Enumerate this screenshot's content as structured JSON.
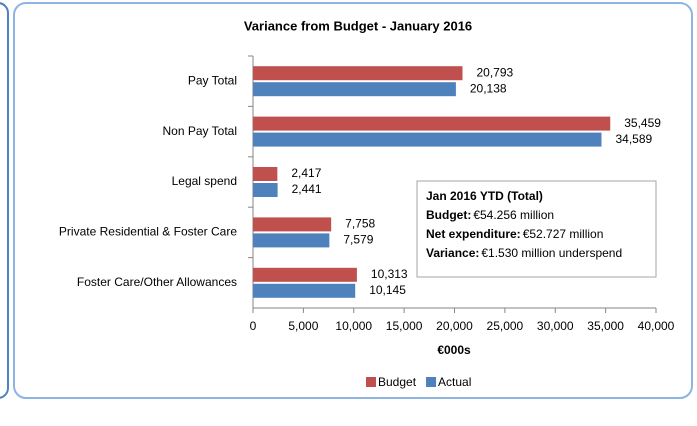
{
  "chart_data": {
    "type": "hbar",
    "title": "Variance from Budget - January 2016",
    "x_label": "€000s",
    "categories": [
      "Pay  Total",
      "Non Pay Total",
      "Legal spend",
      "Private Residential & Foster Care",
      "Foster Care/Other Allowances"
    ],
    "series": [
      {
        "name": "Budget",
        "color": "#c0504d",
        "values": [
          20793,
          35459,
          2417,
          7758,
          10313
        ],
        "value_labels": [
          "20,793",
          "35,459",
          "2,417",
          "7,758",
          "10,313"
        ]
      },
      {
        "name": "Actual",
        "color": "#4f81bd",
        "values": [
          20138,
          34589,
          2441,
          7579,
          10145
        ],
        "value_labels": [
          "20,138",
          "34,589",
          "2,441",
          "7,579",
          "10,145"
        ]
      }
    ],
    "xlim": [
      0,
      40000
    ],
    "xticks": [
      0,
      {
        "value": 5000,
        "label": "5,000"
      },
      {
        "value": 10000,
        "label": "10,000"
      },
      {
        "value": 15000,
        "label": "15,000"
      },
      {
        "value": 20000,
        "label": "20,000"
      },
      {
        "value": 25000,
        "label": "25,000"
      },
      {
        "value": 30000,
        "label": "30,000"
      },
      {
        "value": 35000,
        "label": "35,000"
      },
      {
        "value": 40000,
        "label": "40,000"
      }
    ],
    "legend": "bottom",
    "annotation": {
      "title": "Jan 2016 YTD (Total)",
      "lines": [
        {
          "label": "Budget:",
          "text": "€54.256 million"
        },
        {
          "label": "Net expenditure:",
          "text": "€52.727 million"
        },
        {
          "label": "Variance:",
          "text": "€1.530 million underspend"
        }
      ]
    }
  }
}
